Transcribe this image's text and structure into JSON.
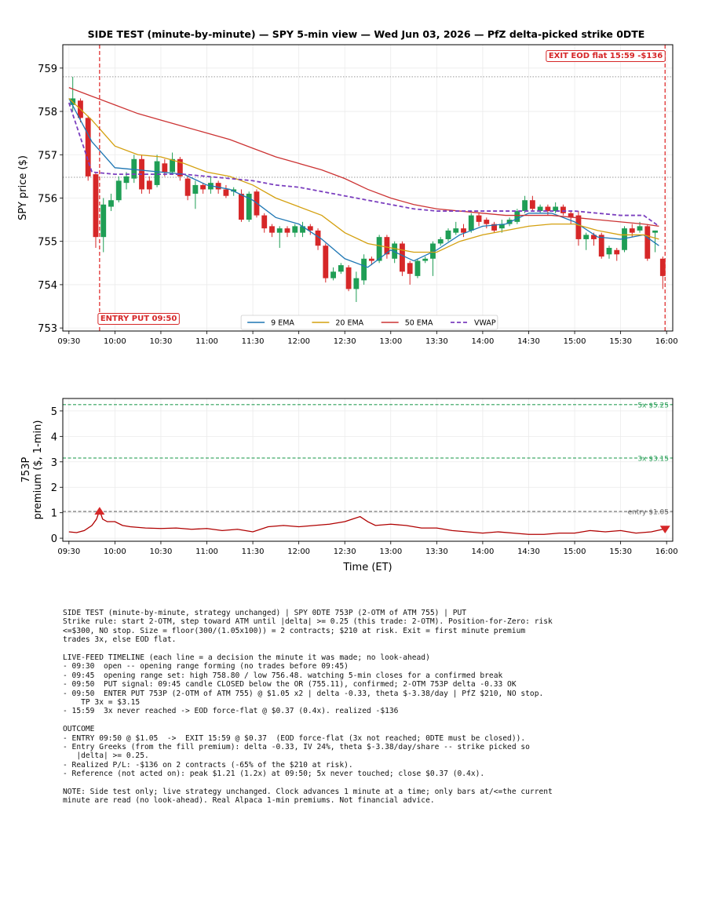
{
  "chart_data": [
    {
      "type": "candlestick",
      "title": "SIDE TEST (minute-by-minute) — SPY 5-min view — Wed Jun 03, 2026 — PfZ delta-picked strike 0DTE",
      "ylabel": "SPY price ($)",
      "xlim": [
        "09:26",
        "16:04"
      ],
      "xticks": [
        "09:30",
        "10:00",
        "10:30",
        "11:00",
        "11:30",
        "12:00",
        "12:30",
        "13:00",
        "13:30",
        "14:00",
        "14:30",
        "15:00",
        "15:30",
        "16:00"
      ],
      "ylim": [
        752.93,
        759.54
      ],
      "yticks": [
        753,
        754,
        755,
        756,
        757,
        758,
        759
      ],
      "grid": true,
      "bar_minutes": 5,
      "up_color": "#1f9e55",
      "down_color": "#d62728",
      "x": [
        "09:30",
        "09:35",
        "09:40",
        "09:45",
        "09:50",
        "09:55",
        "10:00",
        "10:05",
        "10:10",
        "10:15",
        "10:20",
        "10:25",
        "10:30",
        "10:35",
        "10:40",
        "10:45",
        "10:50",
        "10:55",
        "11:00",
        "11:05",
        "11:10",
        "11:15",
        "11:20",
        "11:25",
        "11:30",
        "11:35",
        "11:40",
        "11:45",
        "11:50",
        "11:55",
        "12:00",
        "12:05",
        "12:10",
        "12:15",
        "12:20",
        "12:25",
        "12:30",
        "12:35",
        "12:40",
        "12:45",
        "12:50",
        "12:55",
        "13:00",
        "13:05",
        "13:10",
        "13:15",
        "13:20",
        "13:25",
        "13:30",
        "13:35",
        "13:40",
        "13:45",
        "13:50",
        "13:55",
        "14:00",
        "14:05",
        "14:10",
        "14:15",
        "14:20",
        "14:25",
        "14:30",
        "14:35",
        "14:40",
        "14:45",
        "14:50",
        "14:55",
        "15:00",
        "15:05",
        "15:10",
        "15:15",
        "15:20",
        "15:25",
        "15:30",
        "15:35",
        "15:40",
        "15:45",
        "15:50",
        "15:55"
      ],
      "open": [
        758.15,
        758.25,
        757.85,
        756.55,
        755.1,
        755.8,
        755.95,
        756.35,
        756.45,
        756.9,
        756.4,
        756.3,
        756.8,
        756.6,
        756.9,
        756.45,
        756.1,
        756.3,
        756.2,
        756.35,
        756.2,
        756.15,
        756.1,
        755.5,
        756.15,
        755.6,
        755.35,
        755.2,
        755.3,
        755.2,
        755.2,
        755.35,
        755.25,
        754.9,
        754.15,
        754.3,
        754.4,
        753.9,
        754.1,
        754.6,
        754.55,
        755.1,
        754.6,
        754.95,
        754.5,
        754.2,
        754.55,
        754.6,
        754.95,
        755.05,
        755.2,
        755.3,
        755.25,
        755.6,
        755.5,
        755.4,
        755.3,
        755.4,
        755.45,
        755.7,
        755.95,
        755.7,
        755.8,
        755.7,
        755.8,
        755.65,
        755.6,
        755.05,
        755.15,
        755.15,
        754.7,
        754.8,
        754.8,
        755.3,
        755.25,
        755.35,
        755.2,
        754.6
      ],
      "high": [
        758.8,
        758.3,
        757.9,
        756.6,
        756.0,
        756.1,
        756.5,
        756.6,
        757.0,
        757.0,
        756.5,
        757.0,
        756.9,
        757.05,
        756.95,
        756.5,
        756.4,
        756.35,
        756.5,
        756.4,
        756.3,
        756.25,
        756.2,
        756.15,
        756.2,
        755.65,
        755.4,
        755.35,
        755.35,
        755.4,
        755.45,
        755.4,
        755.3,
        754.95,
        754.4,
        754.5,
        754.45,
        754.3,
        754.7,
        754.65,
        755.15,
        755.15,
        755.0,
        755.0,
        754.55,
        754.6,
        754.65,
        755.0,
        755.1,
        755.3,
        755.45,
        755.4,
        755.65,
        755.65,
        755.55,
        755.45,
        755.5,
        755.55,
        755.75,
        756.05,
        756.05,
        755.85,
        755.85,
        755.9,
        755.85,
        755.7,
        755.7,
        755.2,
        755.2,
        755.2,
        754.9,
        754.85,
        755.35,
        755.4,
        755.45,
        755.4,
        755.25,
        754.65
      ],
      "low": [
        758.0,
        757.75,
        756.4,
        754.85,
        754.75,
        755.7,
        755.9,
        756.2,
        756.35,
        756.1,
        756.1,
        756.25,
        756.5,
        756.55,
        756.4,
        755.95,
        755.75,
        756.1,
        756.1,
        756.1,
        756.0,
        756.05,
        755.45,
        755.45,
        755.55,
        755.2,
        755.1,
        754.85,
        755.1,
        755.1,
        755.1,
        755.15,
        754.8,
        754.05,
        754.1,
        754.25,
        753.85,
        753.6,
        754.0,
        754.45,
        754.5,
        754.6,
        754.5,
        754.2,
        754.0,
        754.15,
        754.5,
        754.2,
        754.9,
        755.0,
        755.15,
        755.1,
        755.2,
        755.35,
        755.3,
        755.2,
        755.2,
        755.35,
        755.4,
        755.65,
        755.7,
        755.65,
        755.6,
        755.65,
        755.6,
        755.4,
        754.9,
        754.8,
        754.9,
        754.6,
        754.6,
        754.55,
        754.75,
        755.1,
        755.2,
        754.55,
        754.75,
        753.9
      ],
      "close": [
        758.3,
        757.85,
        756.5,
        755.1,
        755.85,
        755.95,
        756.4,
        756.5,
        756.9,
        756.2,
        756.2,
        756.85,
        756.6,
        756.9,
        756.5,
        756.05,
        756.3,
        756.2,
        756.35,
        756.2,
        756.05,
        756.2,
        755.5,
        756.1,
        755.6,
        755.3,
        755.2,
        755.3,
        755.2,
        755.35,
        755.35,
        755.25,
        754.9,
        754.15,
        754.3,
        754.45,
        753.9,
        754.15,
        754.6,
        754.55,
        755.1,
        754.7,
        754.95,
        754.3,
        754.25,
        754.55,
        754.6,
        754.95,
        755.05,
        755.25,
        755.3,
        755.2,
        755.6,
        755.45,
        755.4,
        755.25,
        755.4,
        755.5,
        755.7,
        755.95,
        755.75,
        755.8,
        755.7,
        755.8,
        755.65,
        755.55,
        755.05,
        755.15,
        755.05,
        754.65,
        754.85,
        754.7,
        755.3,
        755.2,
        755.35,
        754.6,
        755.25,
        754.2
      ],
      "line_x": [
        "09:30",
        "09:45",
        "10:00",
        "10:15",
        "10:30",
        "10:45",
        "11:00",
        "11:15",
        "11:30",
        "11:45",
        "12:00",
        "12:15",
        "12:30",
        "12:45",
        "13:00",
        "13:15",
        "13:30",
        "13:45",
        "14:00",
        "14:15",
        "14:30",
        "14:45",
        "15:00",
        "15:15",
        "15:30",
        "15:45",
        "15:55"
      ],
      "overlays": [
        {
          "name": "9 EMA",
          "color": "#1f77b4",
          "dashed": false,
          "values": [
            758.3,
            757.3,
            756.7,
            756.65,
            756.6,
            756.55,
            756.3,
            756.2,
            755.95,
            755.55,
            755.4,
            755.05,
            754.6,
            754.4,
            754.8,
            754.55,
            754.8,
            755.15,
            755.35,
            755.4,
            755.65,
            755.65,
            755.45,
            755.1,
            755.05,
            755.15,
            754.9
          ]
        },
        {
          "name": "20 EMA",
          "color": "#d4a00f",
          "dashed": false,
          "values": [
            758.3,
            757.8,
            757.2,
            757.0,
            756.95,
            756.8,
            756.6,
            756.5,
            756.3,
            756.0,
            755.8,
            755.6,
            755.2,
            754.95,
            754.85,
            754.75,
            754.75,
            755.0,
            755.15,
            755.25,
            755.35,
            755.4,
            755.4,
            755.25,
            755.15,
            755.15,
            755.05
          ]
        },
        {
          "name": "50 EMA",
          "color": "#cc3333",
          "dashed": false,
          "values": [
            758.55,
            758.35,
            758.15,
            757.95,
            757.8,
            757.65,
            757.5,
            757.35,
            757.15,
            756.95,
            756.8,
            756.65,
            756.45,
            756.2,
            756.0,
            755.85,
            755.75,
            755.7,
            755.65,
            755.6,
            755.6,
            755.6,
            755.55,
            755.5,
            755.45,
            755.4,
            755.35
          ]
        },
        {
          "name": "VWAP",
          "color": "#7b3fbf",
          "dashed": true,
          "values": [
            758.2,
            756.6,
            756.55,
            756.55,
            756.55,
            756.55,
            756.5,
            756.45,
            756.4,
            756.3,
            756.25,
            756.15,
            756.05,
            755.95,
            755.85,
            755.75,
            755.7,
            755.7,
            755.7,
            755.7,
            755.7,
            755.7,
            755.7,
            755.65,
            755.6,
            755.6,
            755.35
          ]
        }
      ],
      "hlines": [
        {
          "value": 758.8
        },
        {
          "value": 756.48
        }
      ],
      "vlines": [
        {
          "x": "09:50",
          "label": "ENTRY PUT 09:50",
          "corner": "bottom"
        },
        {
          "x": "15:59",
          "label": "EXIT EOD flat 15:59 -$136",
          "corner": "top"
        }
      ],
      "legend": "lower center"
    },
    {
      "type": "line",
      "ylabel": [
        "753P",
        "premium ($, 1-min)"
      ],
      "xlabel": "Time (ET)",
      "xlim": [
        "09:26",
        "16:04"
      ],
      "xticks": [
        "09:30",
        "10:00",
        "10:30",
        "11:00",
        "11:30",
        "12:00",
        "12:30",
        "13:00",
        "13:30",
        "14:00",
        "14:30",
        "15:00",
        "15:30",
        "16:00"
      ],
      "ylim": [
        -0.12,
        5.49
      ],
      "yticks": [
        0,
        1,
        2,
        3,
        4,
        5
      ],
      "grid": true,
      "color": "#b00000",
      "x": [
        "09:30",
        "09:35",
        "09:40",
        "09:45",
        "09:48",
        "09:50",
        "09:52",
        "09:55",
        "10:00",
        "10:05",
        "10:10",
        "10:20",
        "10:30",
        "10:40",
        "10:50",
        "11:00",
        "11:10",
        "11:20",
        "11:30",
        "11:40",
        "11:50",
        "12:00",
        "12:10",
        "12:20",
        "12:30",
        "12:35",
        "12:40",
        "12:45",
        "12:50",
        "13:00",
        "13:10",
        "13:20",
        "13:30",
        "13:40",
        "13:50",
        "14:00",
        "14:10",
        "14:20",
        "14:30",
        "14:40",
        "14:50",
        "15:00",
        "15:10",
        "15:20",
        "15:30",
        "15:40",
        "15:50",
        "15:59"
      ],
      "values": [
        0.25,
        0.22,
        0.3,
        0.5,
        0.75,
        1.1,
        0.75,
        0.65,
        0.65,
        0.5,
        0.45,
        0.4,
        0.38,
        0.4,
        0.35,
        0.38,
        0.3,
        0.35,
        0.25,
        0.45,
        0.5,
        0.45,
        0.5,
        0.55,
        0.65,
        0.75,
        0.85,
        0.65,
        0.5,
        0.55,
        0.5,
        0.4,
        0.4,
        0.3,
        0.25,
        0.2,
        0.25,
        0.2,
        0.15,
        0.15,
        0.2,
        0.2,
        0.3,
        0.25,
        0.3,
        0.2,
        0.25,
        0.37
      ],
      "hlines": [
        {
          "value": 5.25,
          "label": "5x $5.25",
          "color": "#2ca05a"
        },
        {
          "value": 3.15,
          "label": "3x $3.15",
          "color": "#2ca05a"
        },
        {
          "value": 1.05,
          "label": "entry $1.05",
          "color": "#666666"
        }
      ],
      "markers": [
        {
          "x": "09:50",
          "value": 1.05,
          "shape": "up",
          "color": "#d62728"
        },
        {
          "x": "15:59",
          "value": 0.37,
          "shape": "down",
          "color": "#d62728"
        }
      ]
    }
  ],
  "report": {
    "paragraphs": [
      [
        "SIDE TEST (minute-by-minute, strategy unchanged) | SPY 0DTE 753P (2-OTM of ATM 755) | PUT",
        "Strike rule: start 2-OTM, step toward ATM until |delta| >= 0.25 (this trade: 2-OTM). Position-for-Zero: risk",
        "<=$300, NO stop. Size = floor(300/(1.05x100)) = 2 contracts; $210 at risk. Exit = first minute premium",
        "trades 3x, else EOD flat."
      ],
      [
        "LIVE-FEED TIMELINE (each line = a decision the minute it was made; no look-ahead)",
        "- 09:30  open -- opening range forming (no trades before 09:45)",
        "- 09:45  opening range set: high 758.80 / low 756.48. watching 5-min closes for a confirmed break",
        "- 09:50  PUT signal: 09:45 candle CLOSED below the OR (755.11), confirmed; 2-OTM 753P delta -0.33 OK",
        "- 09:50  ENTER PUT 753P (2-OTM of ATM 755) @ $1.05 x2 | delta -0.33, theta $-3.38/day | PfZ $210, NO stop.",
        "    TP 3x = $3.15",
        "- 15:59  3x never reached -> EOD force-flat @ $0.37 (0.4x). realized -$136"
      ],
      [
        "OUTCOME",
        "- ENTRY 09:50 @ $1.05  ->  EXIT 15:59 @ $0.37  (EOD force-flat (3x not reached; 0DTE must be closed)).",
        "- Entry Greeks (from the fill premium): delta -0.33, IV 24%, theta $-3.38/day/share -- strike picked so",
        "   |delta| >= 0.25.",
        "- Realized P/L: -$136 on 2 contracts (-65% of the $210 at risk).",
        "- Reference (not acted on): peak $1.21 (1.2x) at 09:50; 5x never touched; close $0.37 (0.4x)."
      ],
      [
        "NOTE: Side test only; live strategy unchanged. Clock advances 1 minute at a time; only bars at/<=the current",
        "minute are read (no look-ahead). Real Alpaca 1-min premiums. Not financial advice."
      ]
    ]
  }
}
